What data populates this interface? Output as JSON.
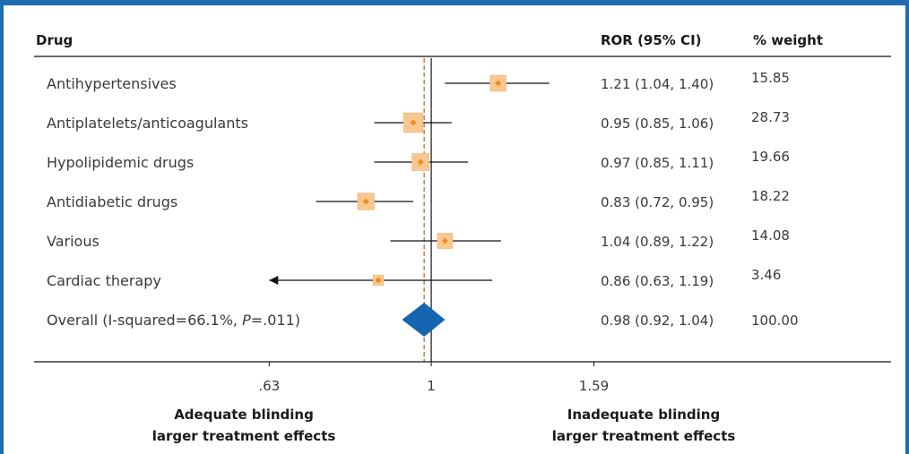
{
  "colors": {
    "frame": "#1f6cb0",
    "box_fill": "#f9c890",
    "box_stroke": "#f4b778",
    "point": "#f08a24",
    "diamond": "#1565b0",
    "dashed": "#b5703c",
    "line": "#111111"
  },
  "headers": {
    "drug": "Drug",
    "ror": "ROR (95% CI)",
    "weight": "% weight"
  },
  "chart_data": {
    "type": "forest",
    "scale": "log",
    "xlim": [
      0.54,
      1.75
    ],
    "null_value": 1,
    "overall_dashed_value": 0.98,
    "ticks": [
      {
        "value": 0.63,
        "label": ".63"
      },
      {
        "value": 1,
        "label": "1"
      },
      {
        "value": 1.59,
        "label": "1.59"
      }
    ],
    "rows": [
      {
        "drug": "Antihypertensives",
        "ror": 1.21,
        "lower": 1.04,
        "upper": 1.4,
        "ci_text": "1.21 (1.04, 1.40)",
        "weight": 15.85,
        "weight_text": "15.85"
      },
      {
        "drug": "Antiplatelets/anticoagulants",
        "ror": 0.95,
        "lower": 0.85,
        "upper": 1.06,
        "ci_text": "0.95 (0.85, 1.06)",
        "weight": 28.73,
        "weight_text": "28.73"
      },
      {
        "drug": "Hypolipidemic drugs",
        "ror": 0.97,
        "lower": 0.85,
        "upper": 1.11,
        "ci_text": "0.97 (0.85, 1.11)",
        "weight": 19.66,
        "weight_text": "19.66"
      },
      {
        "drug": "Antidiabetic drugs",
        "ror": 0.83,
        "lower": 0.72,
        "upper": 0.95,
        "ci_text": "0.83 (0.72, 0.95)",
        "weight": 18.22,
        "weight_text": "18.22"
      },
      {
        "drug": "Various",
        "ror": 1.04,
        "lower": 0.89,
        "upper": 1.22,
        "ci_text": "1.04 (0.89, 1.22)",
        "weight": 14.08,
        "weight_text": "14.08"
      },
      {
        "drug": "Cardiac therapy",
        "ror": 0.86,
        "lower": 0.63,
        "upper": 1.19,
        "ci_text": "0.86 (0.63, 1.19)",
        "weight": 3.46,
        "weight_text": "3.46",
        "lower_truncated": true
      }
    ],
    "overall": {
      "label_prefix": "Overall (I-squared=66.1%, ",
      "label_p": "P",
      "label_suffix": "=.011)",
      "ror": 0.98,
      "lower": 0.92,
      "upper": 1.04,
      "ci_text": "0.98 (0.92, 1.04)",
      "weight_text": "100.00"
    },
    "footer": {
      "left": [
        "Adequate blinding",
        "larger treatment effects"
      ],
      "right": [
        "Inadequate blinding",
        "larger treatment effects"
      ]
    }
  }
}
